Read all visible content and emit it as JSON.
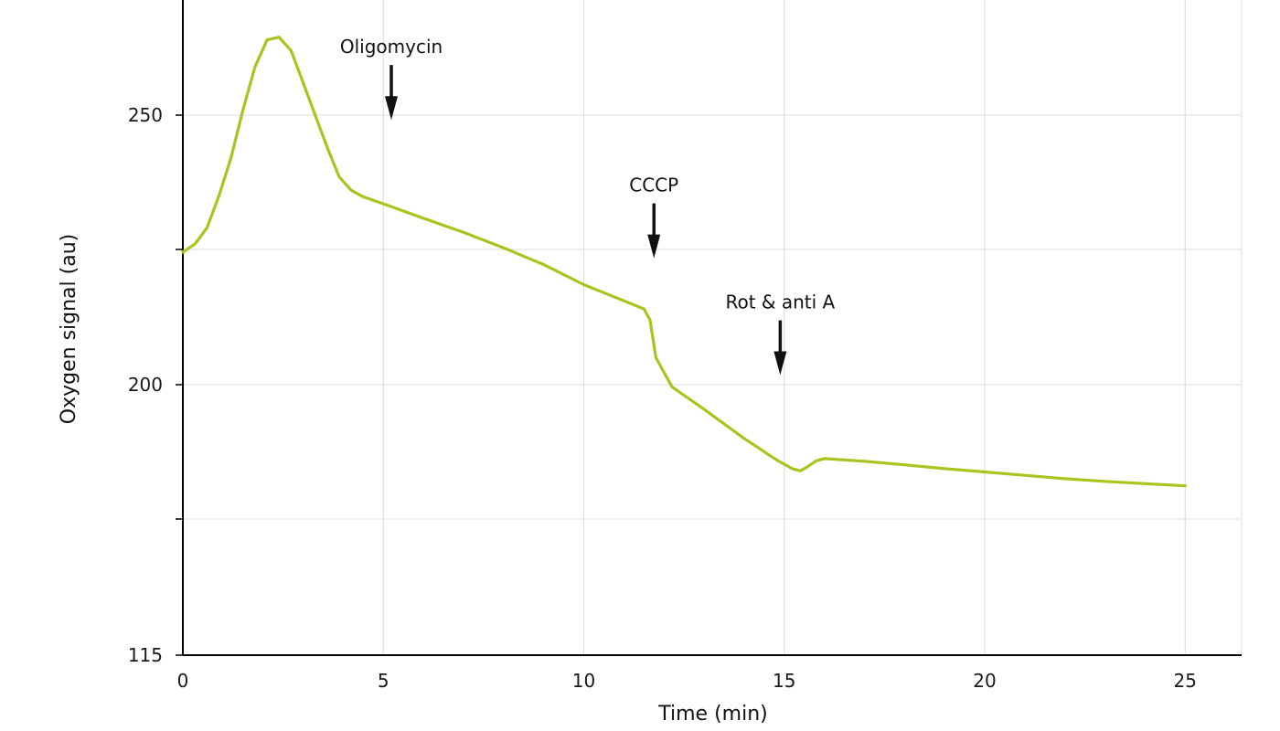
{
  "colors": {
    "series": "#a6c61f",
    "axis": "#000000",
    "grid": "#dcdcdc",
    "arrow": "#111111"
  },
  "chart_data": {
    "type": "line",
    "title": "",
    "xlabel": "Time (min)",
    "ylabel": "Oxygen signal (au)",
    "xlim": [
      0,
      26.5
    ],
    "x_ticks": [
      0,
      5,
      10,
      15,
      20,
      25
    ],
    "x_tick_labels": [
      "0",
      "5",
      "10",
      "15",
      "20",
      "25"
    ],
    "y_ticks": [
      115,
      200,
      250
    ],
    "y_tick_labels": [
      "115",
      "200",
      "250"
    ],
    "y_gridlines": [
      115,
      140,
      200,
      225,
      250
    ],
    "y_tick_pixel_note": "",
    "grid": true,
    "legend": "none",
    "series": [
      {
        "x": [
          0,
          0.3,
          0.6,
          0.9,
          1.2,
          1.5,
          1.8,
          2.1,
          2.4,
          2.7,
          3.0,
          3.3,
          3.6,
          3.9,
          4.2,
          4.5,
          5.0,
          6.0,
          7.0,
          8.0,
          9.0,
          10.0,
          11.0,
          11.5,
          11.65,
          11.8,
          12.2,
          13.0,
          14.0,
          14.8,
          15.2,
          15.4,
          15.55,
          15.8,
          16.0,
          17.0,
          18.0,
          19.0,
          20.0,
          21.0,
          22.0,
          23.0,
          24.0,
          25.0
        ],
        "y": [
          224.5,
          226,
          229,
          235,
          242,
          251,
          259,
          264,
          264.5,
          262,
          256,
          250,
          244,
          238.5,
          236,
          234.8,
          233.5,
          230.8,
          228.2,
          225.3,
          222.2,
          218.5,
          215.5,
          214,
          212,
          205,
          199,
          189,
          176,
          166.5,
          162.5,
          161.5,
          163,
          166,
          167,
          165.8,
          164.2,
          162.5,
          161,
          159.5,
          158,
          156.8,
          155.8,
          154.8
        ]
      }
    ],
    "annotations": [
      {
        "label": "Oligomycin",
        "x": 5.2
      },
      {
        "label": "CCCP",
        "x": 11.75
      },
      {
        "label": "Rot & anti A",
        "x": 14.9
      }
    ]
  }
}
